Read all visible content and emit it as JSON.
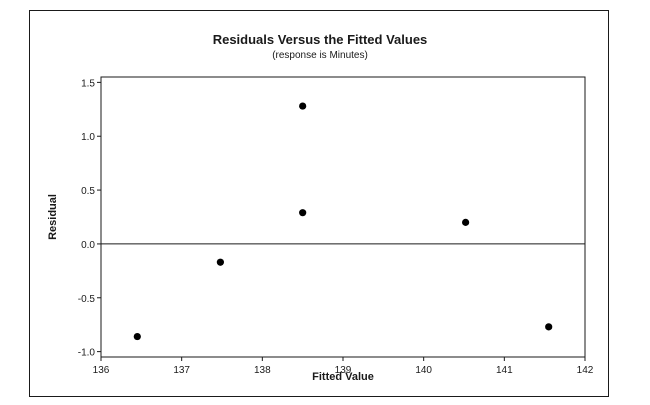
{
  "chart_data": {
    "type": "scatter",
    "title": "Residuals Versus the Fitted Values",
    "subtitle": "(response is Minutes)",
    "xlabel": "Fitted Value",
    "ylabel": "Residual",
    "xlim": [
      136,
      142
    ],
    "ylim": [
      -1.05,
      1.55
    ],
    "x_ticks": [
      136,
      137,
      138,
      139,
      140,
      141,
      142
    ],
    "y_ticks": [
      -1.0,
      -0.5,
      0.0,
      0.5,
      1.0,
      1.5
    ],
    "x_tick_labels": [
      "136",
      "137",
      "138",
      "139",
      "140",
      "141",
      "142"
    ],
    "y_tick_labels": [
      "-1.0",
      "-0.5",
      "0.0",
      "0.5",
      "1.0",
      "1.5"
    ],
    "reference_line_y": 0,
    "grid": false,
    "marker_color": "#000000",
    "points": [
      {
        "x": 136.45,
        "y": -0.86
      },
      {
        "x": 137.48,
        "y": -0.17
      },
      {
        "x": 138.5,
        "y": 1.28
      },
      {
        "x": 138.5,
        "y": 0.29
      },
      {
        "x": 140.52,
        "y": 0.2
      },
      {
        "x": 141.55,
        "y": -0.77
      }
    ]
  }
}
